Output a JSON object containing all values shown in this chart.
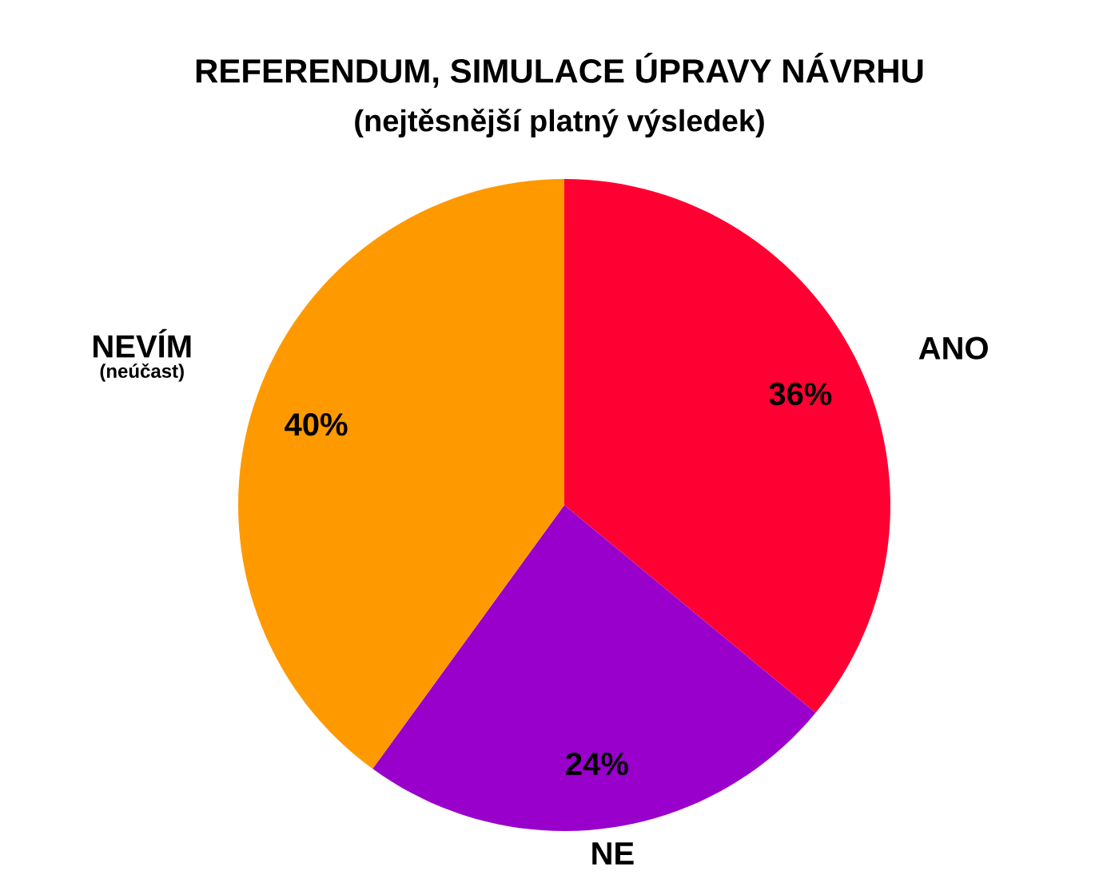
{
  "chart_data": {
    "type": "pie",
    "title": "REFERENDUM, SIMULACE ÚPRAVY NÁVRHU",
    "subtitle": "(nejtěsnější platný výsledek)",
    "categories": [
      "ANO",
      "NE",
      "NEVÍM"
    ],
    "values": [
      36,
      24,
      40
    ],
    "colors": [
      "#ff0033",
      "#9900cc",
      "#ff9900"
    ],
    "value_labels": [
      "36%",
      "24%",
      "40%"
    ],
    "annotations": [
      "(neúčast)"
    ]
  }
}
